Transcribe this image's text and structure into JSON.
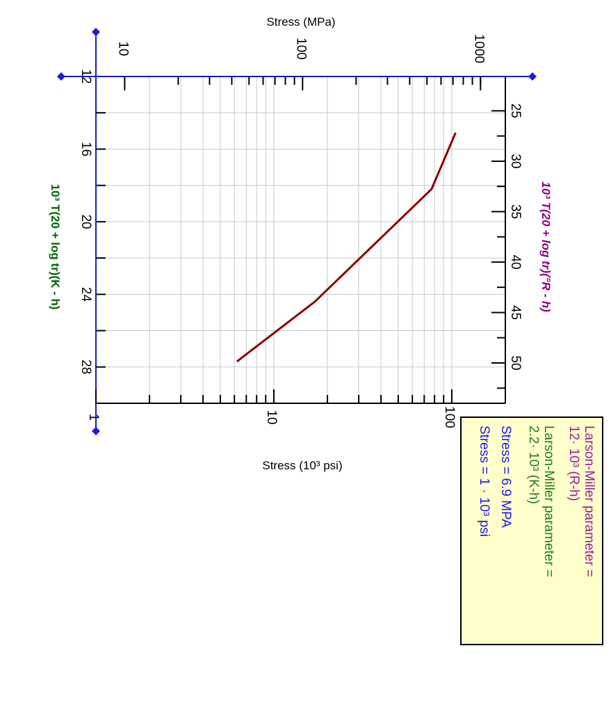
{
  "chart_data": {
    "type": "line",
    "orientation": "rotated 90 degrees clockwise",
    "stress_psi_axis": {
      "title": "Stress (10³ psi)",
      "scale": "log",
      "range": [
        1,
        200
      ],
      "ticks": [
        "1",
        "10",
        "100"
      ]
    },
    "stress_mpa_axis": {
      "title": "Stress (MPa)",
      "scale": "log",
      "ticks": [
        "10",
        "100",
        "1000"
      ]
    },
    "lmp_kelvin_axis": {
      "title": "10³ T(20 + log tr)(K - h)",
      "range": [
        12,
        30
      ],
      "ticks": [
        "12",
        "16",
        "20",
        "24",
        "28"
      ]
    },
    "lmp_rankine_axis": {
      "title": "10³ T(20 + log tr)(°R - h)",
      "ticks": [
        "25",
        "30",
        "35",
        "40",
        "45",
        "50"
      ]
    },
    "series": [
      {
        "color": "#8b0000",
        "points": [
          {
            "lmp_k": 15.1,
            "stress_ksi": 105
          },
          {
            "lmp_k": 18.2,
            "stress_ksi": 77
          },
          {
            "lmp_k": 24.4,
            "stress_ksi": 17
          },
          {
            "lmp_k": 27.7,
            "stress_ksi": 6.2
          }
        ]
      }
    ],
    "grid": true,
    "legend_box": {
      "position": "bottom-right",
      "background": "#ffffcc",
      "lines": [
        {
          "text": "Larson-Miller parameter =",
          "color": "#9b1b9b"
        },
        {
          "text": "12· 10³ (R-h)",
          "color": "#9b1b9b"
        },
        {
          "text": "Larson-Miller parameter =",
          "color": "#1e7a1e"
        },
        {
          "text": "2.2· 10³ (K-h)",
          "color": "#1e7a1e"
        },
        {
          "text": "Stress = 6.9 MPA",
          "color": "#1a1aee"
        },
        {
          "text": "Stress = 1 · 10³ psi",
          "color": "#1a1aee"
        }
      ]
    }
  },
  "colors": {
    "axis_blue": "#1a1acc",
    "handle_blue": "#1a1aee",
    "grid": "#c8c8c8",
    "curve": "#8b0000"
  }
}
